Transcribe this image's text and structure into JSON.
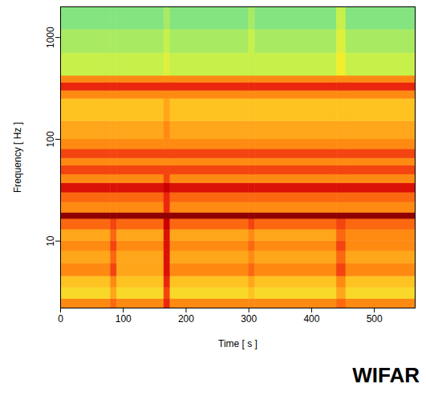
{
  "chart_data": {
    "type": "heatmap",
    "xlabel": "Time [ s ]",
    "ylabel": "Frequency [ Hz ]",
    "annotations": [
      "WIFAR"
    ],
    "log": "y",
    "xlim": [
      0,
      565
    ],
    "xticks": [
      0,
      100,
      200,
      300,
      400,
      500
    ],
    "ylim": [
      2.2,
      2000
    ],
    "yticks": [
      10,
      100,
      1000
    ],
    "x_edges": [
      0,
      80,
      90,
      165,
      175,
      300,
      310,
      440,
      455,
      565
    ],
    "y_edges": [
      2.2,
      2.7,
      3.5,
      4.5,
      6,
      8,
      10,
      13,
      16.5,
      19,
      24,
      30,
      37,
      45,
      55,
      65,
      80,
      100,
      150,
      250,
      300,
      360,
      420,
      700,
      1200,
      2000
    ],
    "zlim": [
      0,
      10
    ],
    "cells": [
      [
        6.5,
        7,
        6.5,
        8,
        6.5,
        6.5,
        6.5,
        7,
        6.5
      ],
      [
        5,
        6,
        5,
        7.5,
        5,
        5.5,
        5,
        6,
        5
      ],
      [
        5.5,
        6.5,
        5.5,
        8,
        5.5,
        6,
        5.5,
        6.5,
        5.5
      ],
      [
        6.5,
        7.5,
        6,
        8.5,
        6.5,
        7,
        6.5,
        7.5,
        6.5
      ],
      [
        6,
        7,
        6,
        8.5,
        6,
        6.5,
        6,
        7,
        6
      ],
      [
        6.5,
        7.5,
        6.5,
        8.5,
        6.5,
        7,
        6.5,
        7.5,
        6.5
      ],
      [
        6,
        7,
        6,
        8.5,
        6,
        6.5,
        6,
        7,
        6.5
      ],
      [
        7,
        7.5,
        7,
        9,
        7,
        7.5,
        7,
        7.5,
        7
      ],
      [
        10,
        10,
        10,
        10,
        10,
        10,
        10,
        10,
        10
      ],
      [
        6.5,
        6.5,
        6.5,
        8,
        6.5,
        6.5,
        6.5,
        6.5,
        6.5
      ],
      [
        7,
        7,
        7,
        8,
        7,
        7,
        7,
        7,
        7
      ],
      [
        8.5,
        8.5,
        8.5,
        9,
        8.5,
        8.5,
        8.5,
        8.5,
        8.5
      ],
      [
        6.5,
        6.5,
        6.5,
        7.5,
        6.5,
        6.5,
        6.5,
        6.5,
        6.5
      ],
      [
        7.5,
        7.5,
        7.5,
        7.5,
        7.5,
        7.5,
        7.5,
        7.5,
        7.5
      ],
      [
        6.5,
        6.5,
        6.5,
        6.5,
        6.5,
        6.5,
        6.5,
        6.5,
        6.5
      ],
      [
        7.5,
        7.5,
        7.5,
        7.5,
        7.5,
        7.5,
        7.5,
        7.5,
        7.5
      ],
      [
        6.5,
        6.5,
        6.5,
        6.5,
        6.5,
        6.5,
        6.5,
        6.5,
        6.5
      ],
      [
        6,
        6,
        6,
        6.5,
        6,
        6,
        6,
        6,
        6
      ],
      [
        5.5,
        5.5,
        5.5,
        6,
        5.5,
        5.5,
        5.5,
        5.5,
        5.5
      ],
      [
        6.5,
        6.5,
        6.5,
        6.5,
        6.5,
        6.5,
        6.5,
        6.5,
        6.5
      ],
      [
        8,
        8,
        8,
        8,
        8,
        8,
        8,
        8,
        8
      ],
      [
        6.5,
        6.5,
        6.5,
        6.5,
        6.5,
        6.5,
        6.5,
        6.5,
        6.5
      ],
      [
        3.5,
        3.5,
        3.5,
        4,
        3.5,
        3.5,
        3.5,
        4.5,
        3.5
      ],
      [
        3,
        3,
        3,
        3.5,
        3,
        3.5,
        3,
        4,
        3
      ],
      [
        2.5,
        2.5,
        2.5,
        3,
        2.5,
        3,
        2.5,
        3.5,
        2.5
      ]
    ]
  }
}
